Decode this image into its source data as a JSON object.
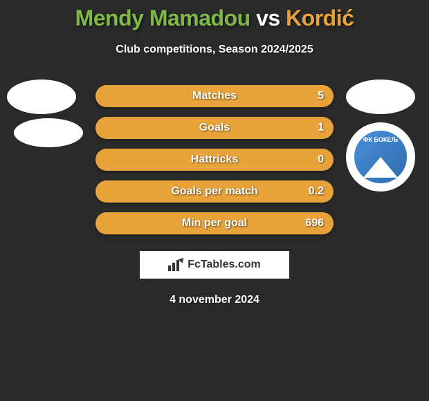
{
  "title": {
    "player1": "Mendy Mamadou",
    "vs": " vs ",
    "player2": "Kordić",
    "player1_color": "#7fb848",
    "vs_color": "#ffffff",
    "player2_color": "#e8a23a"
  },
  "subtitle": "Club competitions, Season 2024/2025",
  "stats": {
    "bar_color": "#e8a23a",
    "rows": [
      {
        "label": "Matches",
        "value_right": "5"
      },
      {
        "label": "Goals",
        "value_right": "1"
      },
      {
        "label": "Hattricks",
        "value_right": "0"
      },
      {
        "label": "Goals per match",
        "value_right": "0.2"
      },
      {
        "label": "Min per goal",
        "value_right": "696"
      }
    ]
  },
  "watermark": {
    "text": "FcTables.com"
  },
  "date": "4 november 2024",
  "club_logo": {
    "name": "ФК БОКЕЉ"
  },
  "colors": {
    "background": "#2a2a2a",
    "badge_bg": "#ffffff"
  }
}
